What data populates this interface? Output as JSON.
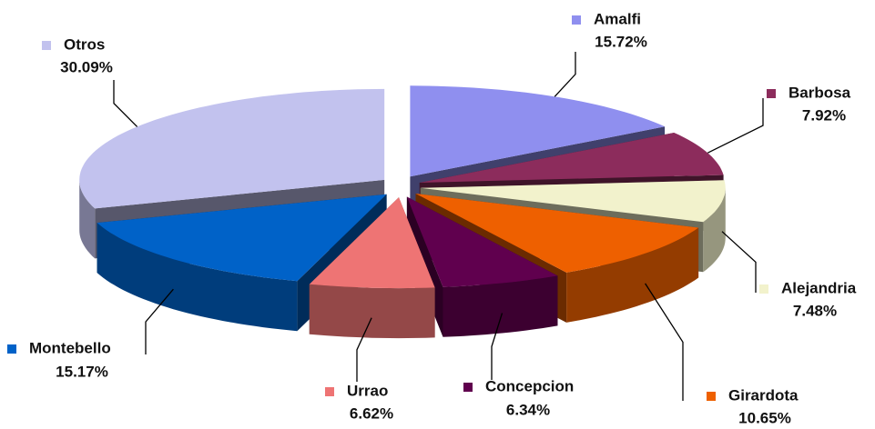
{
  "chart_data": {
    "type": "pie",
    "categories": [
      "Amalfi",
      "Barbosa",
      "Alejandria",
      "Girardota",
      "Concepcion",
      "Urrao",
      "Montebello",
      "Otros"
    ],
    "values": [
      15.72,
      7.92,
      7.48,
      10.65,
      6.34,
      6.62,
      15.17,
      30.09
    ],
    "value_labels": [
      "15.72%",
      "7.92%",
      "7.48%",
      "10.65%",
      "6.34%",
      "6.62%",
      "15.17%",
      "30.09%"
    ],
    "colors": [
      "#8f8fef",
      "#8c2c5c",
      "#f2f2cc",
      "#ee6000",
      "#60004e",
      "#ee7474",
      "#0062c8",
      "#c2c2ee"
    ]
  }
}
